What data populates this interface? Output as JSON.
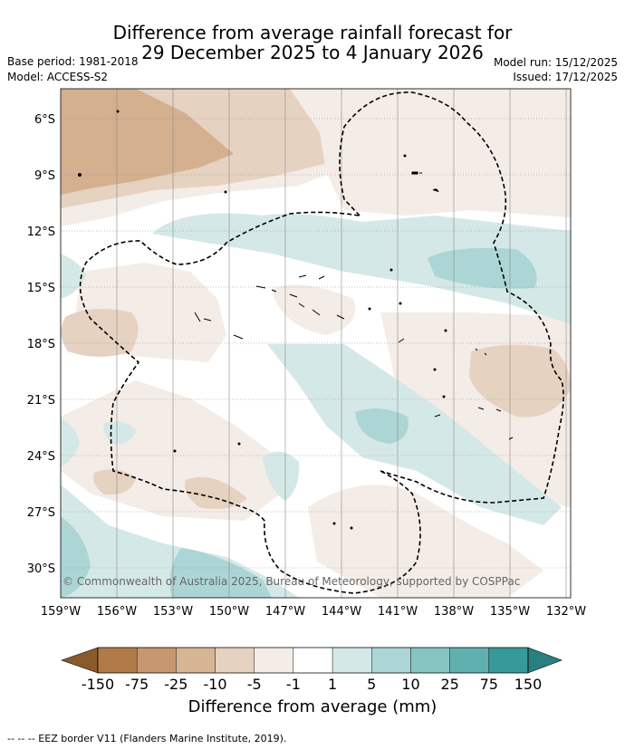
{
  "title": {
    "line1": "Difference from average rainfall forecast for",
    "line2": "29 December 2025 to 4 January 2026"
  },
  "meta": {
    "base_period": "Base period: 1981-2018",
    "model": "Model: ACCESS-S2",
    "model_run": "Model run: 15/12/2025",
    "issued": "Issued: 17/12/2025"
  },
  "axes": {
    "lat_labels": [
      "6°S",
      "9°S",
      "12°S",
      "15°S",
      "18°S",
      "21°S",
      "24°S",
      "27°S",
      "30°S"
    ],
    "lon_labels": [
      "159°W",
      "156°W",
      "153°W",
      "150°W",
      "147°W",
      "144°W",
      "141°W",
      "138°W",
      "135°W",
      "132°W"
    ]
  },
  "copyright": "© Commonwealth of Australia 2025, Bureau of Meteorology, supported by COSPPac",
  "colorbar": {
    "labels": [
      "-150",
      "-75",
      "-25",
      "-10",
      "-5",
      "-1",
      "1",
      "5",
      "10",
      "25",
      "75",
      "150"
    ],
    "colors": [
      "#8a5a2b",
      "#b07a48",
      "#c69770",
      "#d6b595",
      "#e5d2c1",
      "#f4ece6",
      "#ffffff",
      "#d4e9e7",
      "#acd6d5",
      "#86c4c2",
      "#5fb0ae",
      "#38999a",
      "#2a7f80"
    ],
    "title": "Difference from average (mm)"
  },
  "footer": "-- -- -- EEZ border V11 (Flanders Marine Institute, 2019)."
}
